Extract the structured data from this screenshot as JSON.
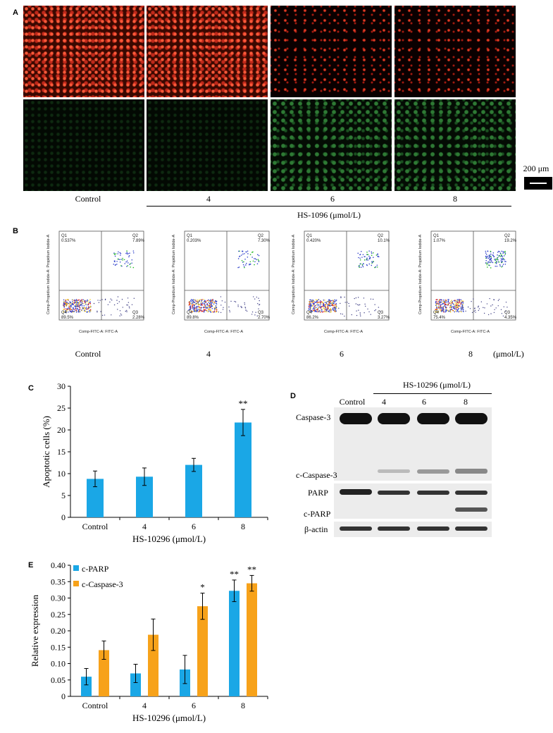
{
  "panelA": {
    "letter": "A",
    "scale_label": "200 μm",
    "labels": [
      "Control",
      "4",
      "6",
      "8"
    ],
    "group_label": "HS-1096 (μmol/L)",
    "images_row1": [
      "red-dense",
      "red-dense",
      "red-sparse",
      "red-sparse"
    ],
    "images_row2": [
      "green-dim",
      "green-dim",
      "green-bright",
      "green-bright"
    ]
  },
  "panelB": {
    "letter": "B",
    "unit": "(μmol/L)",
    "xaxis": "Comp-FITC-A: FITC-A",
    "yaxis": "Comp-Propidium Iodide-A: Propidium Iodide-A",
    "plots": [
      {
        "label": "Control",
        "q1": "0.537%",
        "q2": "7.89%",
        "q3": "2.28%",
        "q4": "89.5%"
      },
      {
        "label": "4",
        "q1": "0.203%",
        "q2": "7.30%",
        "q3": "2.70%",
        "q4": "89.8%"
      },
      {
        "label": "6",
        "q1": "0.420%",
        "q2": "10.1%",
        "q3": "3.27%",
        "q4": "86.2%"
      },
      {
        "label": "8",
        "q1": "1.07%",
        "q2": "19.2%",
        "q3": "4.35%",
        "q4": "75.4%"
      }
    ]
  },
  "panelC": {
    "letter": "C",
    "chart_data": {
      "type": "bar",
      "categories": [
        "Control",
        "4",
        "6",
        "8"
      ],
      "values": [
        8.8,
        9.3,
        12.0,
        21.7
      ],
      "errors": [
        1.8,
        2.0,
        1.5,
        3.0
      ],
      "annotations": [
        "",
        "",
        "",
        "**"
      ],
      "xlabel": "HS-10296 (μmol/L)",
      "ylabel": "Apoptotic cells (%)",
      "ylim": [
        0,
        30
      ],
      "yticks": [
        0,
        5,
        10,
        15,
        20,
        25,
        30
      ],
      "color": "#1aa7e6"
    }
  },
  "panelD": {
    "letter": "D",
    "group_label": "HS-10296 (μmol/L)",
    "lanes": [
      "Control",
      "4",
      "6",
      "8"
    ],
    "rows": [
      "Caspase-3",
      "c-Caspase-3",
      "PARP",
      "c-PARP",
      "β-actin"
    ]
  },
  "panelE": {
    "letter": "E",
    "chart_data": {
      "type": "bar",
      "categories": [
        "Control",
        "4",
        "6",
        "8"
      ],
      "series": [
        {
          "name": "c-PARP",
          "values": [
            0.06,
            0.07,
            0.082,
            0.322
          ],
          "errors": [
            0.025,
            0.028,
            0.043,
            0.033
          ],
          "annotations": [
            "",
            "",
            "",
            "**"
          ],
          "color": "#1aa7e6"
        },
        {
          "name": "c-Caspase-3",
          "values": [
            0.141,
            0.188,
            0.275,
            0.345
          ],
          "errors": [
            0.028,
            0.048,
            0.04,
            0.024
          ],
          "annotations": [
            "",
            "",
            "*",
            "**"
          ],
          "color": "#f7a21a"
        }
      ],
      "xlabel": "HS-10296 (μmol/L)",
      "ylabel": "Relative expression",
      "ylim": [
        0,
        0.4
      ],
      "yticks": [
        "0",
        "0.05",
        "0.10",
        "0.15",
        "0.20",
        "0.25",
        "0.30",
        "0.35",
        "0.40"
      ],
      "legend": "top-left"
    }
  }
}
